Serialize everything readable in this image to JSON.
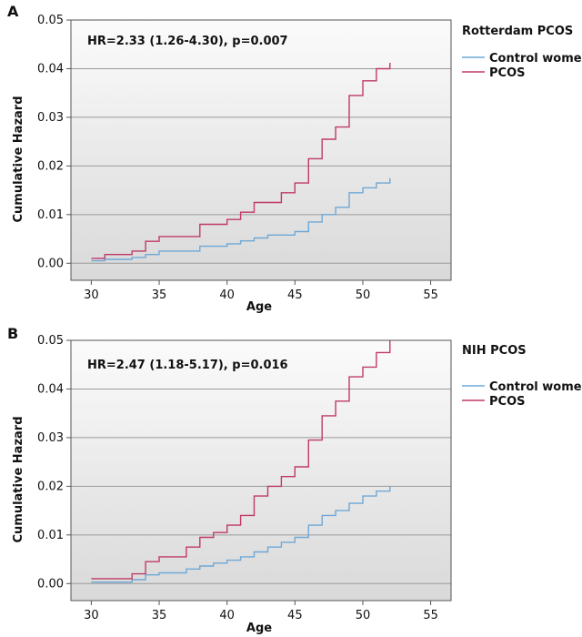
{
  "chart_data": [
    {
      "type": "line",
      "panel_letter": "A",
      "subtitle": "Rotterdam PCOS",
      "annotation": "HR=2.33 (1.26-4.30), p=0.007",
      "xlabel": "Age",
      "ylabel": "Cumulative Hazard",
      "xlim": [
        28.5,
        56.5
      ],
      "ylim": [
        -0.0035,
        0.05
      ],
      "xticks": [
        30,
        35,
        40,
        45,
        50,
        55
      ],
      "yticks": [
        0,
        0.01,
        0.02,
        0.03,
        0.04,
        0.05
      ],
      "ytick_labels": [
        "0.00",
        "0.01",
        "0.02",
        "0.03",
        "0.04",
        "0.05"
      ],
      "grid": "horizontal",
      "legend_position": "right",
      "series": [
        {
          "name": "Control women",
          "color": "#6fa8d6",
          "step": "post",
          "x": [
            30,
            31,
            33,
            34,
            35,
            38,
            40,
            41,
            42,
            43,
            45,
            46,
            47,
            48,
            49,
            50,
            51,
            52
          ],
          "y": [
            0.0005,
            0.0008,
            0.0012,
            0.0018,
            0.0025,
            0.0035,
            0.004,
            0.0046,
            0.0052,
            0.0058,
            0.0065,
            0.0085,
            0.01,
            0.0115,
            0.0145,
            0.0155,
            0.0165,
            0.0175
          ]
        },
        {
          "name": "PCOS",
          "color": "#c03a66",
          "step": "post",
          "x": [
            30,
            31,
            33,
            34,
            35,
            38,
            40,
            41,
            42,
            44,
            45,
            46,
            47,
            48,
            49,
            50,
            51,
            52
          ],
          "y": [
            0.001,
            0.0018,
            0.0025,
            0.0045,
            0.0055,
            0.008,
            0.009,
            0.0105,
            0.0125,
            0.0145,
            0.0165,
            0.0215,
            0.0255,
            0.028,
            0.0345,
            0.0375,
            0.04,
            0.0412
          ]
        }
      ]
    },
    {
      "type": "line",
      "panel_letter": "B",
      "subtitle": "NIH PCOS",
      "annotation": "HR=2.47 (1.18-5.17), p=0.016",
      "xlabel": "Age",
      "ylabel": "Cumulative Hazard",
      "xlim": [
        28.5,
        56.5
      ],
      "ylim": [
        -0.0035,
        0.05
      ],
      "xticks": [
        30,
        35,
        40,
        45,
        50,
        55
      ],
      "yticks": [
        0,
        0.01,
        0.02,
        0.03,
        0.04,
        0.05
      ],
      "ytick_labels": [
        "0.00",
        "0.01",
        "0.02",
        "0.03",
        "0.04",
        "0.05"
      ],
      "grid": "horizontal",
      "legend_position": "right",
      "series": [
        {
          "name": "Control women",
          "color": "#6fa8d6",
          "step": "post",
          "x": [
            30,
            33,
            34,
            35,
            37,
            38,
            39,
            40,
            41,
            42,
            43,
            44,
            45,
            46,
            47,
            48,
            49,
            50,
            51,
            52
          ],
          "y": [
            0.0003,
            0.0008,
            0.0018,
            0.0022,
            0.003,
            0.0036,
            0.0042,
            0.0048,
            0.0055,
            0.0065,
            0.0075,
            0.0085,
            0.0095,
            0.012,
            0.014,
            0.015,
            0.0165,
            0.018,
            0.019,
            0.02
          ]
        },
        {
          "name": "PCOS",
          "color": "#c03a66",
          "step": "post",
          "x": [
            30,
            33,
            34,
            35,
            37,
            38,
            39,
            40,
            41,
            42,
            43,
            44,
            45,
            46,
            47,
            48,
            49,
            50,
            51,
            52
          ],
          "y": [
            0.001,
            0.002,
            0.0045,
            0.0055,
            0.0075,
            0.0095,
            0.0105,
            0.012,
            0.014,
            0.018,
            0.02,
            0.022,
            0.024,
            0.0295,
            0.0345,
            0.0375,
            0.0425,
            0.0445,
            0.0475,
            0.05
          ]
        }
      ]
    }
  ]
}
